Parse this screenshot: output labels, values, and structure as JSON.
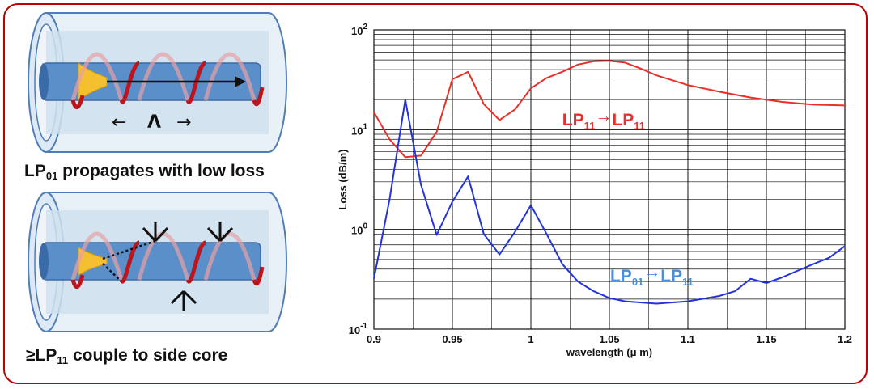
{
  "captions": {
    "top": {
      "main": "LP",
      "sub": "01",
      "rest": " propagates with low loss"
    },
    "bottom": {
      "pre": "≥LP",
      "sub": "11",
      "rest": " couple to side core"
    }
  },
  "illustration": {
    "period_symbol": "Λ",
    "left_arrow": "←",
    "right_arrow": "→"
  },
  "colors": {
    "frame": "#c00000",
    "red_series": "#e8302a",
    "blue_series": "#2233dd",
    "blue_label": "#4a8fdc",
    "cladding": "#cfe0ef",
    "core": "#5b8fc9",
    "helix": "#c0141c",
    "mode": "#f5c030"
  },
  "chart_data": {
    "type": "line",
    "xlabel": "wavelength (μ m)",
    "ylabel": "Loss (dB/m)",
    "xlim": [
      0.9,
      1.2
    ],
    "ylim": [
      0.1,
      100
    ],
    "yscale": "log",
    "grid": true,
    "xticks": [
      "0.9",
      "0.95",
      "1",
      "1.05",
      "1.1",
      "1.15",
      "1.2"
    ],
    "yticks": [
      {
        "base": "10",
        "exp": "-1"
      },
      {
        "base": "10",
        "exp": "0"
      },
      {
        "base": "10",
        "exp": "1"
      },
      {
        "base": "10",
        "exp": "2"
      }
    ],
    "series": [
      {
        "name": "LP11→LP11",
        "label": {
          "a": "LP",
          "sa": "11",
          "arrow": "→",
          "b": "LP",
          "sb": "11"
        },
        "color": "#e8302a",
        "x": [
          0.9,
          0.91,
          0.92,
          0.93,
          0.94,
          0.95,
          0.96,
          0.97,
          0.98,
          0.99,
          1.0,
          1.01,
          1.02,
          1.03,
          1.04,
          1.05,
          1.06,
          1.07,
          1.08,
          1.1,
          1.12,
          1.14,
          1.16,
          1.18,
          1.2
        ],
        "y": [
          15,
          8,
          5.3,
          5.5,
          9.5,
          32,
          38,
          18,
          12.5,
          16,
          26,
          33,
          38,
          45,
          48.5,
          49,
          47,
          41,
          35,
          28,
          24,
          21,
          19,
          17.8,
          17.5
        ]
      },
      {
        "name": "LP01→LP11",
        "label": {
          "a": "LP",
          "sa": "01",
          "arrow": "→",
          "b": "LP",
          "sb": "11"
        },
        "color": "#2233dd",
        "x": [
          0.9,
          0.91,
          0.92,
          0.93,
          0.94,
          0.95,
          0.96,
          0.97,
          0.98,
          0.99,
          1.0,
          1.01,
          1.02,
          1.03,
          1.04,
          1.05,
          1.06,
          1.08,
          1.1,
          1.12,
          1.13,
          1.14,
          1.15,
          1.16,
          1.18,
          1.19,
          1.2
        ],
        "y": [
          0.32,
          2.0,
          20,
          2.8,
          0.88,
          1.9,
          3.4,
          0.9,
          0.56,
          0.95,
          1.75,
          0.9,
          0.45,
          0.3,
          0.24,
          0.205,
          0.19,
          0.18,
          0.19,
          0.215,
          0.24,
          0.32,
          0.29,
          0.33,
          0.45,
          0.52,
          0.68
        ]
      }
    ]
  }
}
